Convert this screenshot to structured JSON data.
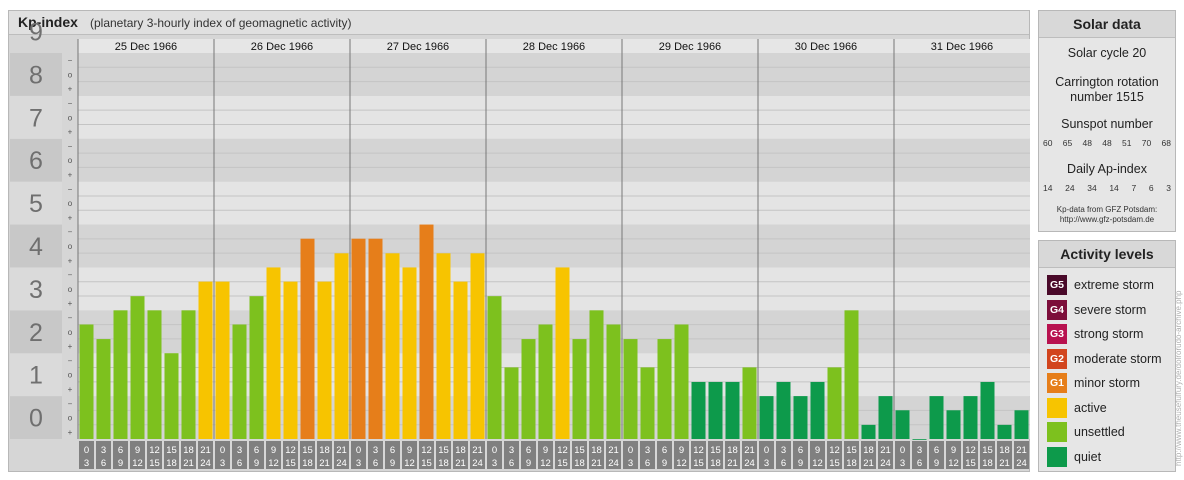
{
  "chart": {
    "title": "Kp-index",
    "subtitle": "(planetary 3-hourly index of geomagnetic activity)"
  },
  "chart_data": {
    "type": "bar",
    "title": "Kp-index",
    "subtitle": "(planetary 3-hourly index of geomagnetic activity)",
    "ylim": [
      0,
      9
    ],
    "y_ticks": [
      "0",
      "1",
      "2",
      "3",
      "4",
      "5",
      "6",
      "7",
      "8",
      "9"
    ],
    "y_minor_ticks": [
      "+",
      "o",
      "−"
    ],
    "days": [
      "25 Dec 1966",
      "26 Dec 1966",
      "27 Dec 1966",
      "28 Dec 1966",
      "29 Dec 1966",
      "30 Dec 1966",
      "31 Dec 1966"
    ],
    "hour_start": [
      "0",
      "3",
      "6",
      "9",
      "12",
      "15",
      "18",
      "21"
    ],
    "hour_end": [
      "3",
      "6",
      "9",
      "12",
      "15",
      "18",
      "21",
      "24"
    ],
    "values": [
      2.67,
      2.33,
      3.0,
      3.33,
      3.0,
      2.0,
      3.0,
      3.67,
      3.67,
      2.67,
      3.33,
      4.0,
      3.67,
      4.67,
      3.67,
      4.33,
      4.67,
      4.67,
      4.33,
      4.0,
      5.0,
      4.33,
      3.67,
      4.33,
      3.33,
      1.67,
      2.33,
      2.67,
      4.0,
      2.33,
      3.0,
      2.67,
      2.33,
      1.67,
      2.33,
      2.67,
      1.33,
      1.33,
      1.33,
      1.67,
      1.0,
      1.33,
      1.0,
      1.33,
      1.67,
      3.0,
      0.33,
      1.0,
      0.67,
      0.0,
      1.0,
      0.67,
      1.0,
      1.33,
      0.33,
      0.67
    ],
    "colors": {
      "quiet": "#0d9a4b",
      "unsettled": "#7dc11e",
      "active": "#f7c400",
      "minor": "#e67e1a",
      "moderate": "#d2451e",
      "strong": "#b8124f",
      "severe": "#7c0e3a",
      "extreme": "#4a0a2a",
      "hour_box": "#808080"
    },
    "watermark": "http://www.theusefulfury.de/dolrorudo-archive.php"
  },
  "solar": {
    "title": "Solar data",
    "cycle": "Solar cycle 20",
    "carrington_1": "Carrington rotation",
    "carrington_2": "number 1515",
    "sunspot_title": "Sunspot number",
    "sunspots": [
      "60",
      "65",
      "48",
      "48",
      "51",
      "70",
      "68"
    ],
    "ap_title": "Daily Ap-index",
    "ap": [
      "14",
      "24",
      "34",
      "14",
      "7",
      "6",
      "3"
    ],
    "credit_1": "Kp-data from GFZ Potsdam:",
    "credit_2": "http://www.gfz-potsdam.de"
  },
  "activity": {
    "title": "Activity levels",
    "levels": [
      {
        "badge": "G5",
        "label": "extreme storm",
        "color": "#4a0a2a"
      },
      {
        "badge": "G4",
        "label": "severe storm",
        "color": "#7c0e3a"
      },
      {
        "badge": "G3",
        "label": "strong storm",
        "color": "#b8124f"
      },
      {
        "badge": "G2",
        "label": "moderate storm",
        "color": "#d2451e"
      },
      {
        "badge": "G1",
        "label": "minor storm",
        "color": "#e67e1a"
      },
      {
        "badge": "",
        "label": "active",
        "color": "#f7c400"
      },
      {
        "badge": "",
        "label": "unsettled",
        "color": "#7dc11e"
      },
      {
        "badge": "",
        "label": "quiet",
        "color": "#0d9a4b"
      }
    ]
  }
}
